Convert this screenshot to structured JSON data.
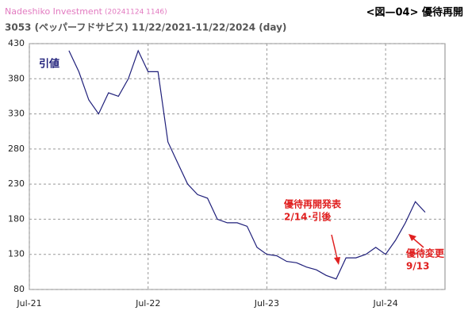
{
  "chart_data": {
    "type": "line",
    "source": "Nadeshiko Investment",
    "timestamp": "(20241124 1146)",
    "title": "3053 (ペッパーフドサビス) 11/22/2021-11/22/2024 (day)",
    "figure_label": "<図—04> 優待再開",
    "x": [
      "2021-11",
      "2021-12",
      "2022-01",
      "2022-02",
      "2022-03",
      "2022-04",
      "2022-05",
      "2022-06",
      "2022-07",
      "2022-08",
      "2022-09",
      "2022-10",
      "2022-11",
      "2022-12",
      "2023-01",
      "2023-02",
      "2023-03",
      "2023-04",
      "2023-05",
      "2023-06",
      "2023-07",
      "2023-08",
      "2023-09",
      "2023-10",
      "2023-11",
      "2023-12",
      "2024-01",
      "2024-02",
      "2024-03",
      "2024-04",
      "2024-05",
      "2024-06",
      "2024-07",
      "2024-08",
      "2024-09",
      "2024-10",
      "2024-11"
    ],
    "series": [
      {
        "name": "引値",
        "color": "#1f1f7a",
        "values": [
          420,
          390,
          350,
          330,
          360,
          355,
          380,
          420,
          390,
          390,
          290,
          260,
          230,
          215,
          210,
          180,
          175,
          175,
          170,
          140,
          130,
          128,
          120,
          118,
          112,
          108,
          100,
          95,
          125,
          125,
          130,
          140,
          130,
          150,
          175,
          205,
          190
        ]
      }
    ],
    "xlim": [
      "2021-07",
      "2025-01"
    ],
    "xticks": [
      {
        "value": "2021-07",
        "label": "Jul-21"
      },
      {
        "value": "2022-07",
        "label": "Jul-22"
      },
      {
        "value": "2023-07",
        "label": "Jul-23"
      },
      {
        "value": "2024-07",
        "label": "Jul-24"
      }
    ],
    "ylim": [
      80,
      430
    ],
    "yticks": [
      80,
      130,
      180,
      230,
      280,
      330,
      380,
      430
    ],
    "grid": true,
    "annotations": [
      {
        "lines": [
          "優待再開発表",
          "2/14･引後"
        ],
        "color": "#e02020"
      },
      {
        "lines": [
          "優待変更",
          "9/13"
        ],
        "color": "#e02020"
      }
    ]
  }
}
